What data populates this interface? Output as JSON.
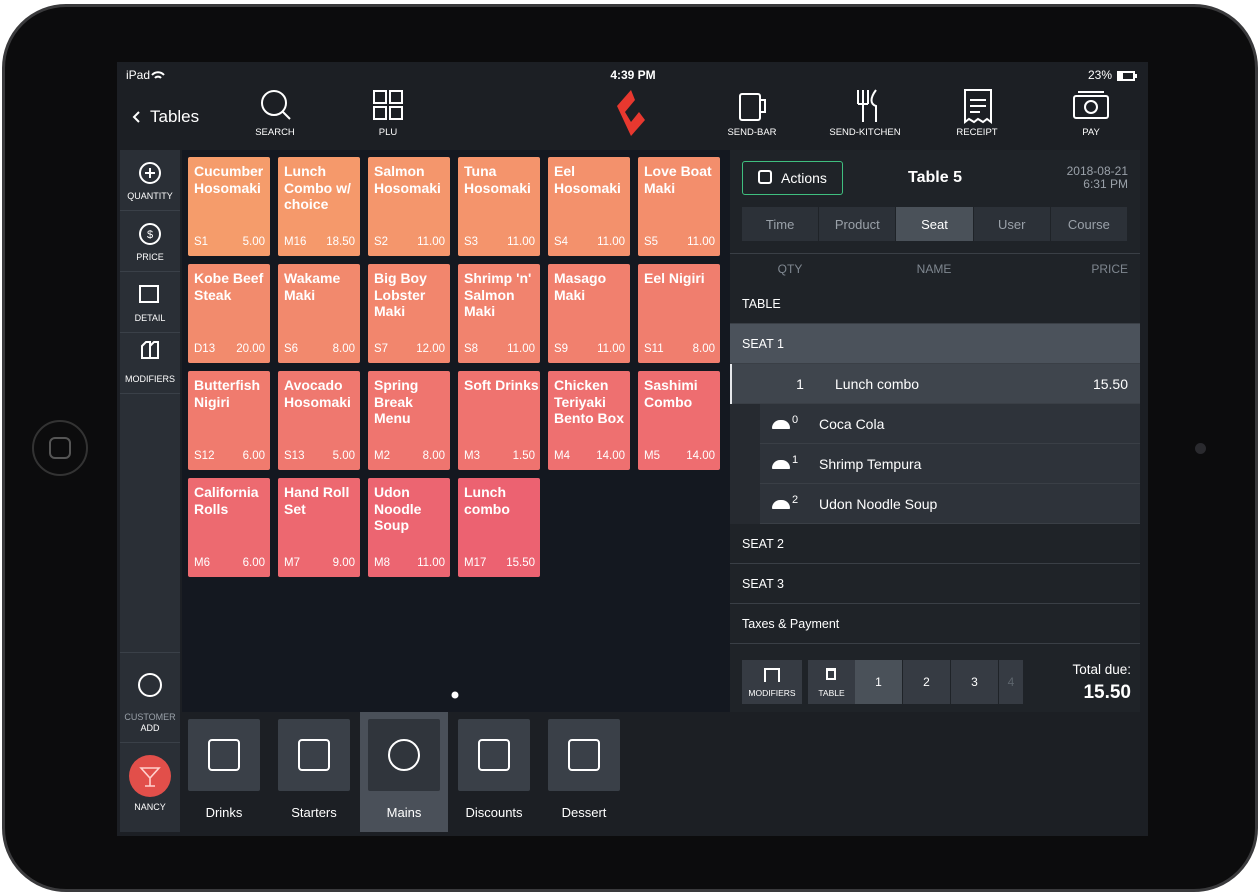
{
  "status_bar": {
    "carrier": "iPad",
    "time": "4:39 PM",
    "battery": "23%"
  },
  "toolbar": {
    "back": "Tables",
    "actions": [
      "SEARCH",
      "PLU",
      "SEND-BAR",
      "SEND-KITCHEN",
      "RECEIPT",
      "PAY"
    ]
  },
  "sidebar": {
    "tools": [
      "QUANTITY",
      "PRICE",
      "DETAIL",
      "MODIFIERS"
    ],
    "customer": [
      "CUSTOMER",
      "ADD"
    ],
    "user": "NANCY"
  },
  "products": [
    {
      "name": "Cucumber Hosomaki",
      "code": "S1",
      "price": "5.00"
    },
    {
      "name": "Lunch Combo w/ choice",
      "code": "M16",
      "price": "18.50"
    },
    {
      "name": "Salmon Hosomaki",
      "code": "S2",
      "price": "11.00"
    },
    {
      "name": "Tuna Hosomaki",
      "code": "S3",
      "price": "11.00"
    },
    {
      "name": "Eel Hosomaki",
      "code": "S4",
      "price": "11.00"
    },
    {
      "name": "Love Boat Maki",
      "code": "S5",
      "price": "11.00"
    },
    {
      "name": "Kobe Beef Steak",
      "code": "D13",
      "price": "20.00"
    },
    {
      "name": "Wakame Maki",
      "code": "S6",
      "price": "8.00"
    },
    {
      "name": "Big Boy Lobster Maki",
      "code": "S7",
      "price": "12.00"
    },
    {
      "name": "Shrimp 'n' Salmon Maki",
      "code": "S8",
      "price": "11.00"
    },
    {
      "name": "Masago Maki",
      "code": "S9",
      "price": "11.00"
    },
    {
      "name": "Eel Nigiri",
      "code": "S11",
      "price": "8.00"
    },
    {
      "name": "Butterfish Nigiri",
      "code": "S12",
      "price": "6.00"
    },
    {
      "name": "Avocado Hosomaki",
      "code": "S13",
      "price": "5.00"
    },
    {
      "name": "Spring Break Menu",
      "code": "M2",
      "price": "8.00"
    },
    {
      "name": "Soft Drinks",
      "code": "M3",
      "price": "1.50"
    },
    {
      "name": "Chicken Teriyaki Bento Box",
      "code": "M4",
      "price": "14.00"
    },
    {
      "name": "Sashimi Combo",
      "code": "M5",
      "price": "14.00"
    },
    {
      "name": "California Rolls",
      "code": "M6",
      "price": "6.00"
    },
    {
      "name": "Hand Roll Set",
      "code": "M7",
      "price": "9.00"
    },
    {
      "name": "Udon Noodle Soup",
      "code": "M8",
      "price": "11.00"
    },
    {
      "name": "Lunch combo",
      "code": "M17",
      "price": "15.50"
    }
  ],
  "categories": [
    {
      "name": "Drinks"
    },
    {
      "name": "Starters"
    },
    {
      "name": "Mains",
      "selected": true
    },
    {
      "name": "Discounts"
    },
    {
      "name": "Dessert"
    }
  ],
  "order": {
    "actions_button": "Actions",
    "table": "Table 5",
    "date": "2018-08-21",
    "time": "6:31 PM",
    "tabs": [
      {
        "name": "Time"
      },
      {
        "name": "Product"
      },
      {
        "name": "Seat",
        "selected": true
      },
      {
        "name": "User"
      },
      {
        "name": "Course"
      }
    ],
    "columns": [
      "QTY",
      "NAME",
      "PRICE"
    ],
    "sections_top": [
      "TABLE",
      "SEAT 1"
    ],
    "item": {
      "qty": "1",
      "name": "Lunch combo",
      "price": "15.50"
    },
    "modifiers": [
      {
        "course": "0",
        "name": "Coca Cola"
      },
      {
        "course": "1",
        "name": "Shrimp Tempura"
      },
      {
        "course": "2",
        "name": "Udon Noodle Soup"
      }
    ],
    "sections_bottom": [
      "SEAT 2",
      "SEAT 3",
      "Taxes & Payment"
    ],
    "footer": {
      "buttons": [
        "MODIFIERS",
        "TABLE"
      ],
      "seats": [
        "1",
        "2",
        "3",
        "4"
      ],
      "total_label": "Total due:",
      "total": "15.50"
    }
  }
}
